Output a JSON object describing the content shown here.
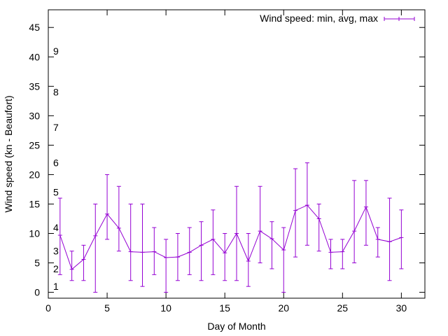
{
  "chart_data": {
    "type": "line",
    "title": "",
    "xlabel": "Day of Month",
    "ylabel": "Wind speed (kn - Beaufort)",
    "xlim": [
      0,
      32
    ],
    "ylim": [
      -1,
      48
    ],
    "xticks": [
      0,
      5,
      10,
      15,
      20,
      25,
      30
    ],
    "yticks": [
      0,
      5,
      10,
      15,
      20,
      25,
      30,
      35,
      40,
      45
    ],
    "legend_position": "top-right",
    "grid": false,
    "beaufort_labels": [
      {
        "label": "1",
        "value": 1
      },
      {
        "label": "2",
        "value": 4
      },
      {
        "label": "3",
        "value": 7
      },
      {
        "label": "4",
        "value": 11
      },
      {
        "label": "5",
        "value": 17
      },
      {
        "label": "6",
        "value": 22
      },
      {
        "label": "7",
        "value": 28
      },
      {
        "label": "8",
        "value": 34
      },
      {
        "label": "9",
        "value": 41
      }
    ],
    "series": [
      {
        "name": "Wind speed: min, avg, max",
        "color": "#9400d3",
        "x": [
          1,
          2,
          3,
          4,
          5,
          6,
          7,
          8,
          9,
          10,
          11,
          12,
          13,
          14,
          15,
          16,
          17,
          18,
          19,
          20,
          21,
          22,
          23,
          24,
          25,
          26,
          27,
          28,
          29,
          30
        ],
        "avg": [
          9.7,
          3.9,
          5.6,
          9.6,
          13.3,
          10.9,
          6.9,
          6.8,
          6.9,
          5.9,
          6.0,
          6.8,
          8.0,
          9.0,
          6.7,
          10.0,
          5.3,
          10.4,
          9.1,
          7.2,
          13.9,
          14.8,
          12.5,
          6.8,
          6.9,
          10.4,
          14.5,
          9.0,
          8.6,
          9.3
        ],
        "min": [
          3,
          2,
          2,
          0,
          9,
          7,
          2,
          1,
          3,
          0,
          2,
          3,
          2,
          3,
          2,
          2,
          1,
          5,
          4,
          0,
          6,
          8,
          7,
          4,
          4,
          5,
          8,
          6,
          2,
          4
        ],
        "max": [
          16,
          7,
          8,
          15,
          20,
          18,
          15,
          15,
          11,
          9,
          10,
          11,
          12,
          14,
          10,
          18,
          10,
          18,
          12,
          11,
          21,
          22,
          15,
          9,
          9,
          19,
          19,
          11,
          16,
          14
        ]
      }
    ]
  }
}
